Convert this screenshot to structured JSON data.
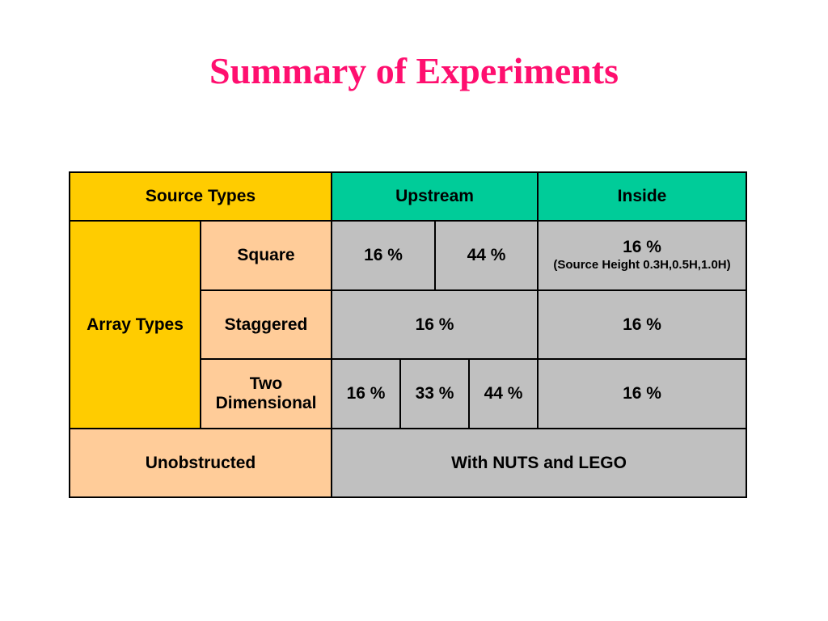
{
  "title": "Summary of Experiments",
  "colors": {
    "title": "#ff0f6f",
    "header_source": "#ffcc00",
    "header_upstream_inside": "#00cc99",
    "row_label": "#ffcc99",
    "value_cell": "#c0c0c0"
  },
  "table": {
    "header": {
      "source_types": "Source Types",
      "upstream": "Upstream",
      "inside": "Inside"
    },
    "array_types_label": "Array Types",
    "square": {
      "label": "Square",
      "upstream_1": "16 %",
      "upstream_2": "44 %",
      "inside_value": "16 %",
      "inside_note": "(Source Height 0.3H,0.5H,1.0H)"
    },
    "staggered": {
      "label": "Staggered",
      "upstream": "16 %",
      "inside": "16 %"
    },
    "two_dimensional": {
      "label_line1": "Two",
      "label_line2": "Dimensional",
      "upstream_1": "16 %",
      "upstream_2": "33 %",
      "upstream_3": "44 %",
      "inside": "16 %"
    },
    "unobstructed": {
      "label": "Unobstructed",
      "value": "With NUTS and LEGO"
    }
  }
}
